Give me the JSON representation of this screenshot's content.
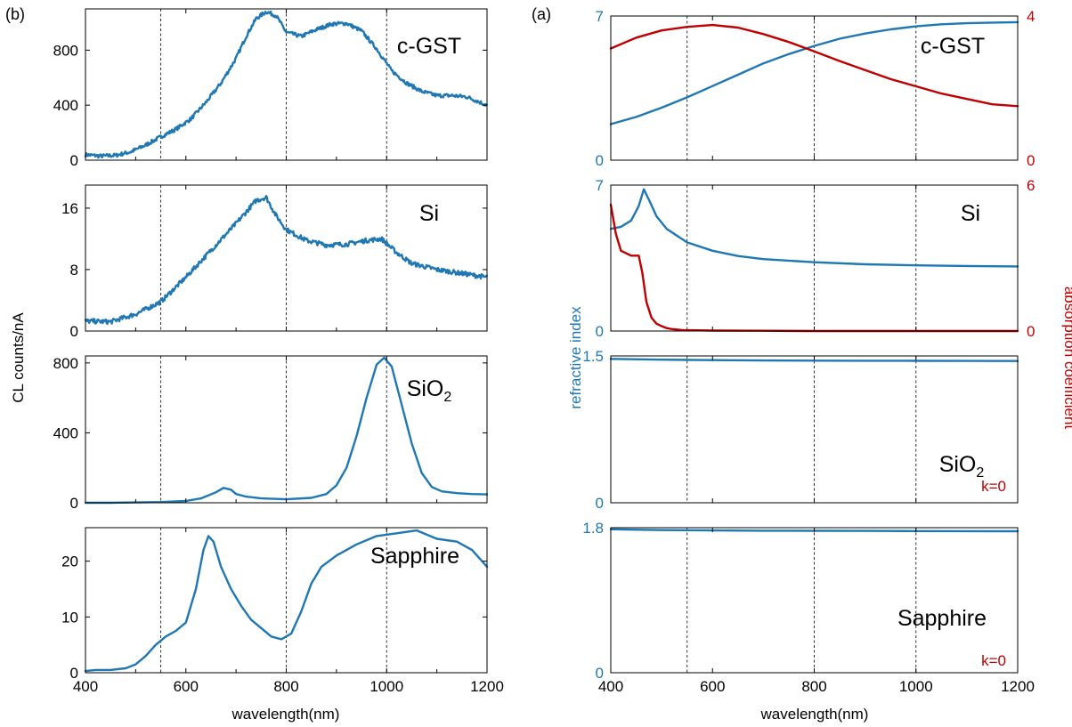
{
  "colors": {
    "blue": "#1f77b4",
    "red": "#c00000",
    "axis": "#000000"
  },
  "chart_data": [
    {
      "id": "b1",
      "type": "line",
      "panel_label": "(b)",
      "material": "c-GST",
      "xlim": [
        400,
        1200
      ],
      "ylim": [
        0,
        1100
      ],
      "yticks": [
        {
          "v": 0,
          "label": "0"
        },
        {
          "v": 400,
          "label": "400"
        },
        {
          "v": 800,
          "label": "800"
        }
      ],
      "vlines": [
        550,
        800,
        1000
      ],
      "series": [
        {
          "color": "blue",
          "noise": 14,
          "x": [
            400,
            430,
            460,
            490,
            520,
            550,
            580,
            610,
            640,
            670,
            700,
            720,
            740,
            760,
            780,
            800,
            830,
            860,
            890,
            920,
            950,
            980,
            1010,
            1040,
            1070,
            1100,
            1130,
            1160,
            1200
          ],
          "y": [
            40,
            30,
            35,
            60,
            110,
            170,
            225,
            300,
            420,
            560,
            740,
            900,
            1030,
            1080,
            1050,
            930,
            900,
            950,
            990,
            995,
            940,
            810,
            650,
            560,
            500,
            470,
            470,
            460,
            400
          ]
        }
      ]
    },
    {
      "id": "b2",
      "type": "line",
      "material": "Si",
      "xlim": [
        400,
        1200
      ],
      "ylim": [
        0,
        19
      ],
      "yticks": [
        {
          "v": 0,
          "label": "0"
        },
        {
          "v": 8,
          "label": "8"
        },
        {
          "v": 16,
          "label": "16"
        }
      ],
      "vlines": [
        550,
        800,
        1000
      ],
      "series": [
        {
          "color": "blue",
          "noise": 0.3,
          "x": [
            400,
            450,
            500,
            550,
            600,
            650,
            700,
            740,
            760,
            780,
            800,
            840,
            880,
            920,
            960,
            990,
            1020,
            1050,
            1100,
            1150,
            1200
          ],
          "y": [
            1.3,
            1.2,
            2.2,
            3.8,
            7.0,
            10.5,
            14.0,
            17.0,
            17.4,
            15.0,
            13.2,
            11.8,
            11.2,
            11.3,
            11.8,
            12.0,
            10.2,
            8.8,
            8.0,
            7.5,
            7.0
          ]
        }
      ]
    },
    {
      "id": "b3",
      "type": "line",
      "material": "SiO",
      "material_sub": "2",
      "xlim": [
        400,
        1200
      ],
      "ylim": [
        0,
        840
      ],
      "yticks": [
        {
          "v": 0,
          "label": "0"
        },
        {
          "v": 400,
          "label": "400"
        },
        {
          "v": 800,
          "label": "800"
        }
      ],
      "vlines": [
        550,
        800,
        1000
      ],
      "series": [
        {
          "color": "blue",
          "noise": 0,
          "x": [
            400,
            450,
            500,
            550,
            600,
            630,
            660,
            675,
            690,
            700,
            720,
            750,
            800,
            850,
            880,
            900,
            920,
            940,
            960,
            980,
            995,
            1010,
            1030,
            1050,
            1070,
            1090,
            1110,
            1140,
            1170,
            1200
          ],
          "y": [
            0,
            0,
            2,
            4,
            10,
            25,
            60,
            85,
            75,
            50,
            35,
            25,
            20,
            28,
            50,
            100,
            200,
            380,
            600,
            790,
            830,
            780,
            560,
            340,
            170,
            90,
            65,
            55,
            50,
            48
          ]
        }
      ]
    },
    {
      "id": "b4",
      "type": "line",
      "material": "Sapphire",
      "xlim": [
        400,
        1200
      ],
      "ylim": [
        0,
        26
      ],
      "yticks": [
        {
          "v": 0,
          "label": "0"
        },
        {
          "v": 10,
          "label": "10"
        },
        {
          "v": 20,
          "label": "20"
        }
      ],
      "vlines": [
        550,
        800,
        1000
      ],
      "series": [
        {
          "color": "blue",
          "noise": 0,
          "x": [
            400,
            420,
            450,
            480,
            500,
            520,
            540,
            560,
            580,
            600,
            620,
            635,
            645,
            655,
            670,
            690,
            710,
            730,
            750,
            770,
            790,
            810,
            830,
            850,
            870,
            900,
            940,
            980,
            1020,
            1060,
            1100,
            1140,
            1170,
            1200
          ],
          "y": [
            0.3,
            0.5,
            0.5,
            0.8,
            1.5,
            3,
            5,
            6.5,
            7.5,
            9,
            15,
            22,
            24.5,
            23.5,
            19,
            15,
            12,
            9.5,
            8,
            6.5,
            6,
            7,
            11,
            16,
            19,
            21,
            23,
            24.5,
            25,
            25.5,
            24,
            23.5,
            22,
            19
          ]
        }
      ]
    },
    {
      "id": "a1",
      "type": "line",
      "panel_label": "(a)",
      "material": "c-GST",
      "xlim": [
        400,
        1200
      ],
      "ylim": [
        0,
        7
      ],
      "y2lim": [
        0,
        4
      ],
      "yticks": [
        {
          "v": 0,
          "label": "0"
        },
        {
          "v": 7,
          "label": "7"
        }
      ],
      "y2ticks": [
        {
          "v": 0,
          "label": "0"
        },
        {
          "v": 4,
          "label": "4"
        }
      ],
      "vlines": [
        550,
        800,
        1000
      ],
      "series": [
        {
          "color": "blue",
          "axis": "left",
          "x": [
            400,
            450,
            500,
            550,
            600,
            650,
            700,
            750,
            800,
            850,
            900,
            950,
            1000,
            1050,
            1100,
            1150,
            1200
          ],
          "y": [
            1.75,
            2.1,
            2.55,
            3.05,
            3.6,
            4.15,
            4.7,
            5.15,
            5.55,
            5.9,
            6.15,
            6.35,
            6.5,
            6.6,
            6.65,
            6.68,
            6.7
          ]
        },
        {
          "color": "red",
          "axis": "right",
          "x": [
            400,
            450,
            500,
            550,
            600,
            650,
            700,
            750,
            800,
            850,
            900,
            950,
            1000,
            1050,
            1100,
            1150,
            1200
          ],
          "y": [
            3.1,
            3.4,
            3.6,
            3.7,
            3.75,
            3.68,
            3.5,
            3.28,
            3.02,
            2.75,
            2.5,
            2.25,
            2.05,
            1.85,
            1.7,
            1.55,
            1.5
          ]
        }
      ]
    },
    {
      "id": "a2",
      "type": "line",
      "material": "Si",
      "xlim": [
        400,
        1200
      ],
      "ylim": [
        0,
        7
      ],
      "y2lim": [
        0,
        6
      ],
      "yticks": [
        {
          "v": 0,
          "label": "0"
        },
        {
          "v": 7,
          "label": "7"
        }
      ],
      "y2ticks": [
        {
          "v": 0,
          "label": "0"
        },
        {
          "v": 6,
          "label": "6"
        }
      ],
      "vlines": [
        550,
        800,
        1000
      ],
      "series": [
        {
          "color": "blue",
          "axis": "left",
          "x": [
            400,
            420,
            440,
            455,
            465,
            475,
            490,
            510,
            550,
            600,
            650,
            700,
            800,
            900,
            1000,
            1100,
            1200
          ],
          "y": [
            4.9,
            5.0,
            5.3,
            6.0,
            6.8,
            6.3,
            5.5,
            4.9,
            4.25,
            3.85,
            3.6,
            3.45,
            3.3,
            3.2,
            3.15,
            3.12,
            3.1
          ]
        },
        {
          "color": "red",
          "axis": "right",
          "x": [
            400,
            410,
            420,
            440,
            455,
            462,
            470,
            480,
            490,
            500,
            510,
            520,
            540,
            600,
            700,
            800,
            1000,
            1200
          ],
          "y": [
            5.2,
            4.0,
            3.3,
            3.1,
            3.1,
            2.4,
            1.2,
            0.55,
            0.3,
            0.2,
            0.12,
            0.08,
            0.04,
            0.02,
            0.01,
            0,
            0,
            0
          ]
        }
      ]
    },
    {
      "id": "a3",
      "type": "line",
      "material": "SiO",
      "material_sub": "2",
      "annotation": "k=0",
      "xlim": [
        400,
        1200
      ],
      "ylim": [
        0,
        1.5
      ],
      "yticks": [
        {
          "v": 0,
          "label": "0"
        },
        {
          "v": 1.5,
          "label": "1.5"
        }
      ],
      "vlines": [
        550,
        800,
        1000
      ],
      "series": [
        {
          "color": "blue",
          "axis": "left",
          "x": [
            400,
            500,
            600,
            700,
            800,
            900,
            1000,
            1100,
            1200
          ],
          "y": [
            1.47,
            1.462,
            1.457,
            1.454,
            1.452,
            1.451,
            1.45,
            1.449,
            1.448
          ]
        }
      ]
    },
    {
      "id": "a4",
      "type": "line",
      "material": "Sapphire",
      "annotation": "k=0",
      "xlabel": "wavelength(nm)",
      "xlim": [
        400,
        1200
      ],
      "ylim": [
        0,
        1.8
      ],
      "yticks": [
        {
          "v": 0,
          "label": "0"
        },
        {
          "v": 1.8,
          "label": "1.8"
        }
      ],
      "vlines": [
        550,
        800,
        1000
      ],
      "series": [
        {
          "color": "blue",
          "axis": "left",
          "x": [
            400,
            500,
            600,
            700,
            800,
            900,
            1000,
            1100,
            1200
          ],
          "y": [
            1.78,
            1.77,
            1.766,
            1.763,
            1.761,
            1.76,
            1.758,
            1.757,
            1.756
          ]
        }
      ]
    }
  ],
  "left_ylabel": "CL counts/nA",
  "right_inner_ylabel": "refractive index",
  "right_outer_ylabel": "absorption coefficient",
  "xlabel_left": "wavelength(nm)",
  "xlabel_right": "wavelength(nm)",
  "xticks": [
    {
      "v": 400,
      "label": "400"
    },
    {
      "v": 600,
      "label": "600"
    },
    {
      "v": 800,
      "label": "800"
    },
    {
      "v": 1000,
      "label": "1000"
    },
    {
      "v": 1200,
      "label": "1200"
    }
  ]
}
